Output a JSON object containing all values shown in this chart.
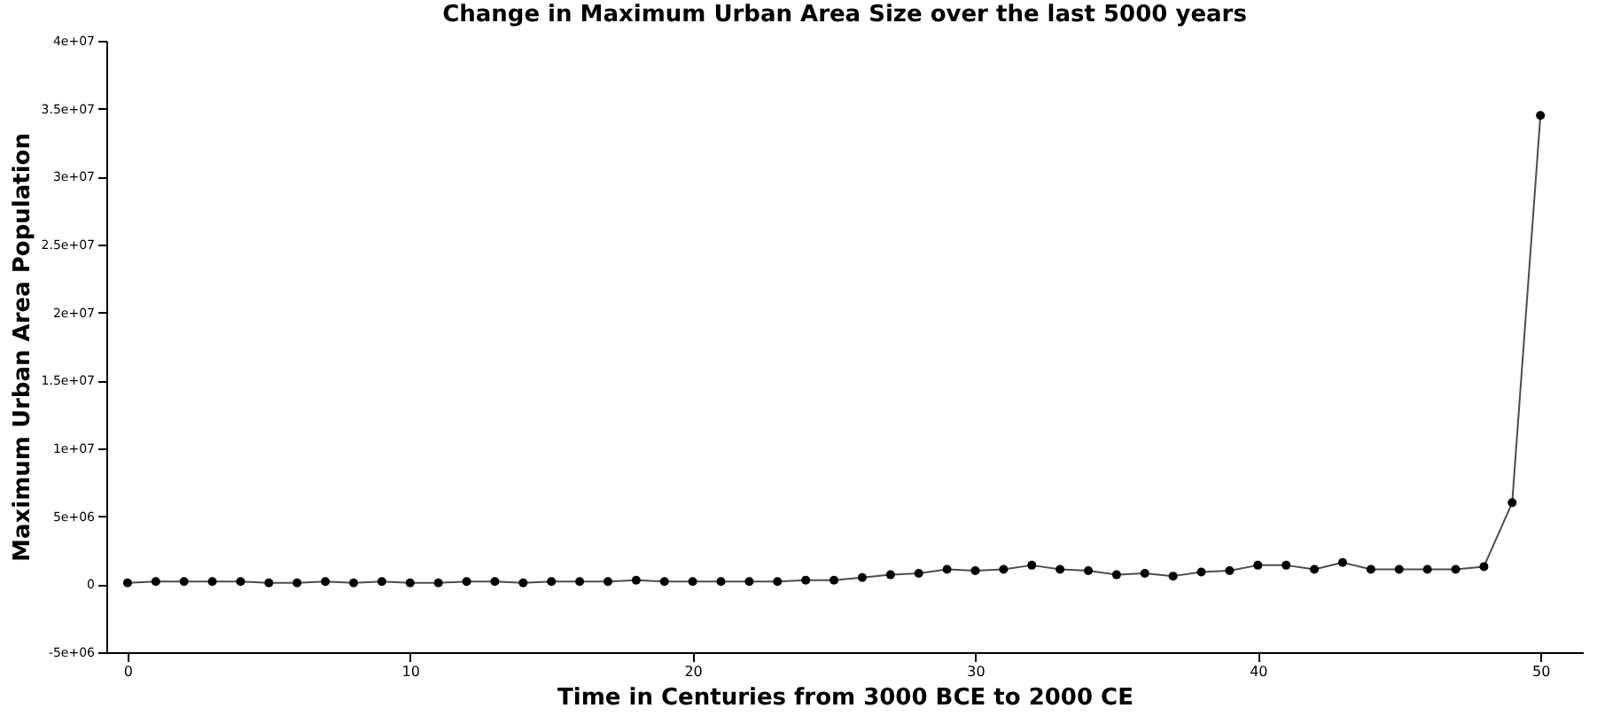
{
  "chart_data": {
    "type": "line",
    "title": "Change in Maximum Urban Area Size over the last 5000 years",
    "xlabel": "Time in Centuries from 3000 BCE to 2000 CE",
    "ylabel": "Maximum Urban Area Population",
    "x": [
      0,
      1,
      2,
      3,
      4,
      5,
      6,
      7,
      8,
      9,
      10,
      11,
      12,
      13,
      14,
      15,
      16,
      17,
      18,
      19,
      20,
      21,
      22,
      23,
      24,
      25,
      26,
      27,
      28,
      29,
      30,
      31,
      32,
      33,
      34,
      35,
      36,
      37,
      38,
      39,
      40,
      41,
      42,
      43,
      44,
      45,
      46,
      47,
      48,
      49,
      50
    ],
    "series": [
      {
        "color": "#000000",
        "values": [
          100000,
          200000,
          200000,
          200000,
          200000,
          100000,
          100000,
          200000,
          100000,
          200000,
          100000,
          100000,
          200000,
          200000,
          100000,
          200000,
          200000,
          200000,
          300000,
          200000,
          200000,
          200000,
          200000,
          200000,
          300000,
          300000,
          500000,
          700000,
          800000,
          1100000,
          1000000,
          1100000,
          1400000,
          1100000,
          1000000,
          700000,
          800000,
          600000,
          900000,
          1000000,
          1400000,
          1400000,
          1100000,
          1600000,
          1100000,
          1100000,
          1100000,
          1100000,
          1300000,
          6000000,
          34500000
        ]
      }
    ],
    "xlim": [
      -0.75,
      51.5
    ],
    "ylim": [
      -5000000,
      40000000
    ],
    "xticks": [
      0,
      10,
      20,
      30,
      40,
      50
    ],
    "yticks": [
      {
        "value": -5000000,
        "label": "-5e+06"
      },
      0,
      {
        "value": 5000000,
        "label": "5e+06"
      },
      {
        "value": 10000000,
        "label": "1e+07"
      },
      {
        "value": 15000000,
        "label": "1.5e+07"
      },
      {
        "value": 20000000,
        "label": "2e+07"
      },
      {
        "value": 25000000,
        "label": "2.5e+07"
      },
      {
        "value": 30000000,
        "label": "3e+07"
      },
      {
        "value": 35000000,
        "label": "3.5e+07"
      },
      {
        "value": 40000000,
        "label": "4e+07"
      }
    ],
    "grid": false,
    "legend": false,
    "marker": "circle",
    "line_style": "solid"
  }
}
